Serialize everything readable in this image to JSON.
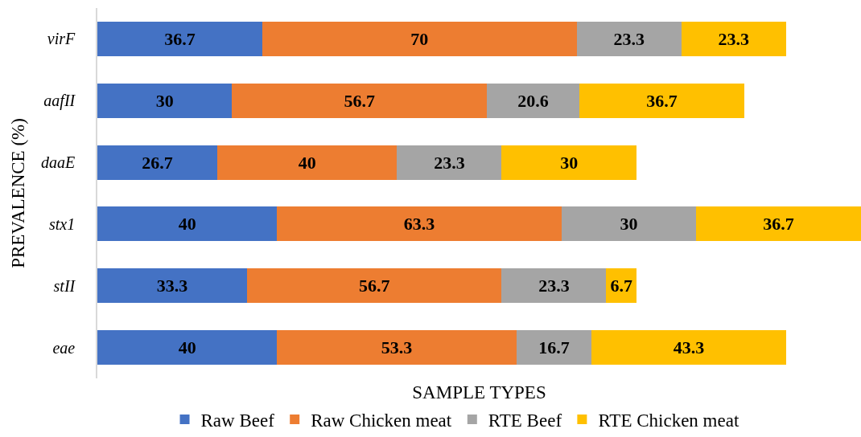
{
  "chart_data": {
    "type": "bar",
    "orientation": "horizontal",
    "stacked": true,
    "data_labels": true,
    "legend": "bottom",
    "xlabel": "SAMPLE TYPES",
    "ylabel": "PREVALENCE (%)",
    "categories": [
      "virF",
      "aafII",
      "daaE",
      "stx1",
      "stII",
      "eae"
    ],
    "series": [
      {
        "name": "Raw Beef",
        "color": "#4472c4",
        "values": [
          36.7,
          30,
          26.7,
          40,
          33.3,
          40
        ]
      },
      {
        "name": "Raw Chicken meat",
        "color": "#ed7d31",
        "values": [
          70,
          56.7,
          40,
          63.3,
          56.7,
          53.3
        ]
      },
      {
        "name": "RTE Beef",
        "color": "#a5a5a5",
        "values": [
          23.3,
          20.6,
          23.3,
          30,
          23.3,
          16.7
        ]
      },
      {
        "name": "RTE Chicken meat",
        "color": "#ffc000",
        "values": [
          23.3,
          36.7,
          30,
          36.7,
          6.7,
          43.3
        ]
      }
    ]
  }
}
